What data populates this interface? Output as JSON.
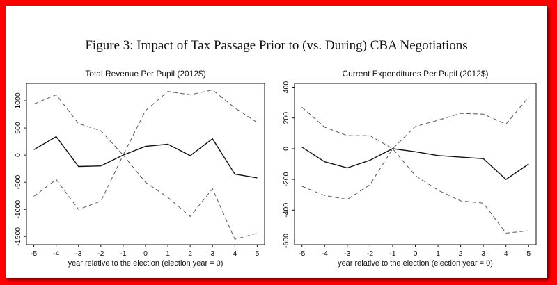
{
  "figure": {
    "title": "Figure 3: Impact of Tax Passage Prior to (vs. During) CBA Negotiations"
  },
  "chart_data": [
    {
      "type": "line",
      "title": "Total Revenue Per Pupil (2012$)",
      "xlabel": "year relative to the election (election year = 0)",
      "ylabel": "",
      "x": [
        -5,
        -4,
        -3,
        -2,
        -1,
        0,
        1,
        2,
        3,
        4,
        5
      ],
      "xticks": [
        -5,
        -4,
        -3,
        -2,
        -1,
        0,
        1,
        2,
        3,
        4,
        5
      ],
      "yticks": [
        1000,
        500,
        0,
        -500,
        -1000,
        -1500
      ],
      "ylim": [
        -1650,
        1320
      ],
      "grid": false,
      "series": [
        {
          "style": "solid",
          "values": [
            100,
            340,
            -210,
            -200,
            0,
            160,
            200,
            -10,
            300,
            -350,
            -420
          ]
        },
        {
          "style": "dashed",
          "values": [
            940,
            1110,
            580,
            450,
            0,
            820,
            1170,
            1110,
            1200,
            870,
            600
          ]
        },
        {
          "style": "dashed",
          "values": [
            -760,
            -450,
            -1000,
            -850,
            0,
            -500,
            -780,
            -1130,
            -620,
            -1550,
            -1440
          ]
        }
      ]
    },
    {
      "type": "line",
      "title": "Current Expenditures Per Pupil (2012$)",
      "xlabel": "year relative to the election (election year = 0)",
      "ylabel": "",
      "x": [
        -5,
        -4,
        -3,
        -2,
        -1,
        0,
        1,
        2,
        3,
        4,
        5
      ],
      "xticks": [
        -5,
        -4,
        -3,
        -2,
        -1,
        0,
        1,
        2,
        3,
        4,
        5
      ],
      "yticks": [
        400,
        200,
        0,
        -200,
        -400,
        -600
      ],
      "ylim": [
        -625,
        425
      ],
      "grid": false,
      "series": [
        {
          "style": "solid",
          "values": [
            10,
            -85,
            -125,
            -75,
            0,
            -20,
            -45,
            -55,
            -65,
            -200,
            -100
          ]
        },
        {
          "style": "dashed",
          "values": [
            270,
            140,
            85,
            85,
            0,
            145,
            185,
            230,
            225,
            160,
            335
          ]
        },
        {
          "style": "dashed",
          "values": [
            -245,
            -305,
            -330,
            -235,
            0,
            -175,
            -270,
            -340,
            -355,
            -550,
            -535
          ]
        }
      ]
    }
  ]
}
